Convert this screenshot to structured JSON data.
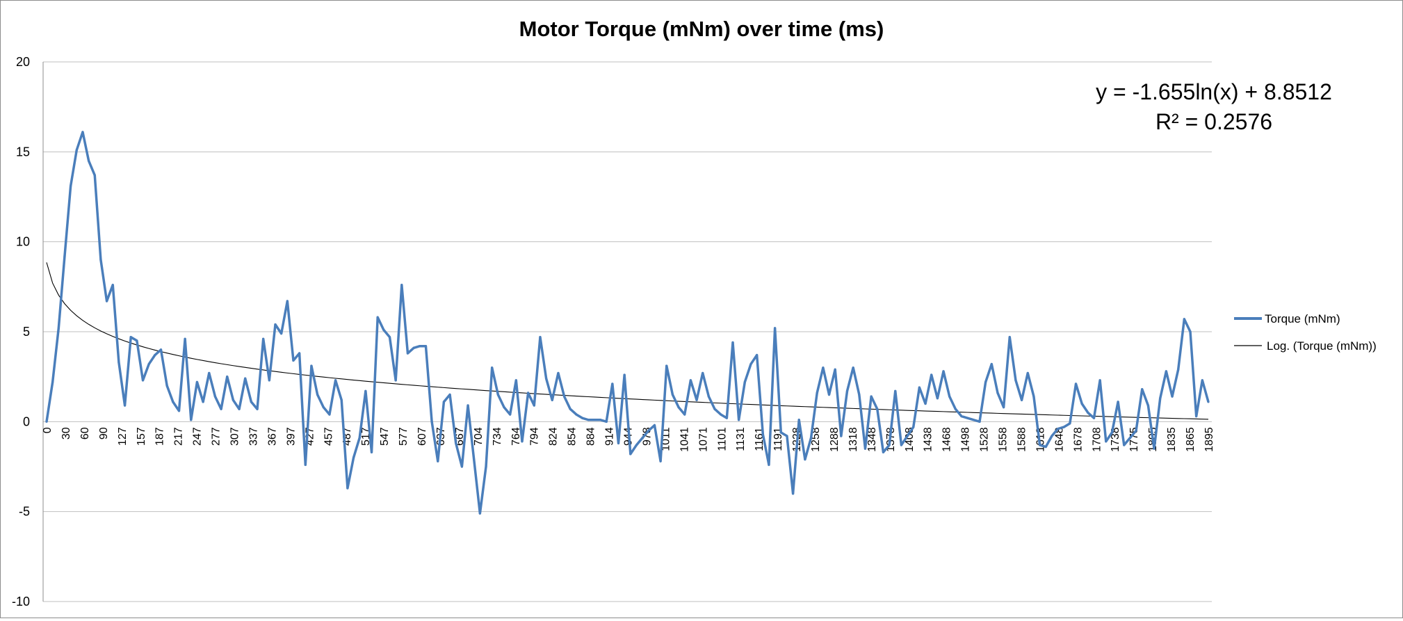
{
  "chart_data": {
    "type": "line",
    "title": "Motor Torque (mNm) over time (ms)",
    "xlabel": "",
    "ylabel": "",
    "ylim": [
      -10,
      20
    ],
    "yticks": [
      20,
      15,
      10,
      5,
      0,
      -5,
      -10
    ],
    "grid": true,
    "legend_position": "right",
    "x_tick_labels": [
      "0",
      "30",
      "60",
      "90",
      "127",
      "157",
      "187",
      "217",
      "247",
      "277",
      "307",
      "337",
      "367",
      "397",
      "427",
      "457",
      "487",
      "517",
      "547",
      "577",
      "607",
      "637",
      "667",
      "704",
      "734",
      "764",
      "794",
      "824",
      "854",
      "884",
      "914",
      "944",
      "978",
      "1011",
      "1041",
      "1071",
      "1101",
      "1131",
      "1161",
      "1191",
      "1228",
      "1258",
      "1288",
      "1318",
      "1348",
      "1378",
      "1408",
      "1438",
      "1468",
      "1498",
      "1528",
      "1558",
      "1588",
      "1618",
      "1648",
      "1678",
      "1708",
      "1738",
      "1775",
      "1805",
      "1835",
      "1865",
      "1895"
    ],
    "series": [
      {
        "name": "Torque (mNm)",
        "color": "#4a7ebb",
        "values": [
          0,
          2.2,
          5.2,
          9.2,
          13.1,
          15.1,
          16.1,
          14.5,
          13.7,
          9,
          6.7,
          7.6,
          3.3,
          0.9,
          4.7,
          4.5,
          2.3,
          3.2,
          3.7,
          4,
          2,
          1.1,
          0.6,
          4.6,
          0.1,
          2.2,
          1.1,
          2.7,
          1.4,
          0.7,
          2.5,
          1.2,
          0.7,
          2.4,
          1.1,
          0.7,
          4.6,
          2.3,
          5.4,
          4.9,
          6.7,
          3.4,
          3.8,
          -2.4,
          3.1,
          1.5,
          0.8,
          0.4,
          2.3,
          1.2,
          -3.7,
          -2,
          -0.9,
          1.7,
          -1.7,
          5.8,
          5.1,
          4.7,
          2.3,
          7.6,
          3.8,
          4.1,
          4.2,
          4.2,
          0,
          -2.2,
          1.1,
          1.5,
          -1.2,
          -2.5,
          0.9,
          -2.1,
          -5.1,
          -2.5,
          3,
          1.5,
          0.8,
          0.4,
          2.3,
          -1.1,
          1.6,
          0.9,
          4.7,
          2.4,
          1.2,
          2.7,
          1.4,
          0.7,
          0.4,
          0.2,
          0.1,
          0.1,
          0.1,
          0,
          2.1,
          -1.2,
          2.6,
          -1.8,
          -1.3,
          -0.9,
          -0.5,
          -0.2,
          -2.2,
          3.1,
          1.5,
          0.8,
          0.4,
          2.3,
          1.2,
          2.7,
          1.4,
          0.7,
          0.4,
          0.2,
          4.4,
          0.1,
          2.2,
          3.2,
          3.7,
          -0.7,
          -2.4,
          5.2,
          -0.6,
          -0.8,
          -4,
          0.1,
          -2.1,
          -0.9,
          1.6,
          3,
          1.5,
          2.9,
          -0.8,
          1.7,
          3,
          1.5,
          -1.5,
          1.4,
          0.7,
          -1.7,
          -1.3,
          1.7,
          -1.3,
          -0.8,
          -0.3,
          1.9,
          1,
          2.6,
          1.3,
          2.8,
          1.4,
          0.7,
          0.3,
          0.2,
          0.1,
          0,
          2.2,
          3.2,
          1.6,
          0.8,
          4.7,
          2.3,
          1.2,
          2.7,
          1.4,
          -1.3,
          -1.4,
          -0.8,
          -0.4,
          -0.3,
          -0.1,
          2.1,
          1,
          0.5,
          0.2,
          2.3,
          -1.1,
          -0.6,
          1.1,
          -1.3,
          -0.9,
          -0.5,
          1.8,
          0.9,
          -1.5,
          1.3,
          2.8,
          1.4,
          2.9,
          5.7,
          5,
          0.3,
          2.3,
          1.1
        ]
      },
      {
        "name": "Log. (Torque (mNm))",
        "color": "#000000",
        "trendline": "logarithmic"
      }
    ],
    "annotations": [
      "y = -1.655ln(x) + 8.8512",
      "R² = 0.2576"
    ]
  }
}
